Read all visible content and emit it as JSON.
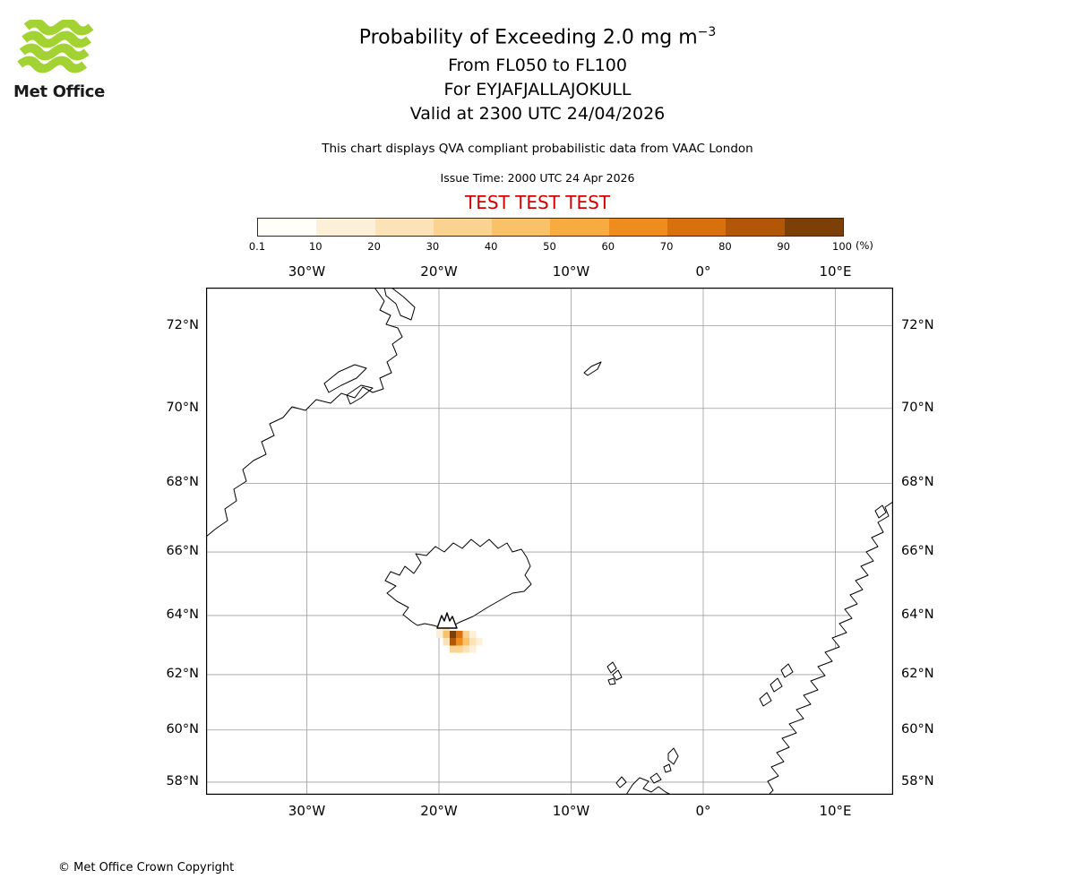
{
  "logo": {
    "brand": "Met Office",
    "color": "#a3d233"
  },
  "header": {
    "title": "Probability of Exceeding 2.0 mg m",
    "title_sup": "−3",
    "subtitle1": "From FL050 to FL100",
    "subtitle2": "For EYJAFJALLAJOKULL",
    "subtitle3": "Valid at 2300 UTC 24/04/2026",
    "description": "This chart displays QVA compliant probabilistic data from VAAC London",
    "issue_time": "Issue Time: 2000 UTC 24 Apr 2026",
    "test_banner": "TEST TEST TEST"
  },
  "legend": {
    "ticks": [
      "0.1",
      "10",
      "20",
      "30",
      "40",
      "50",
      "60",
      "70",
      "80",
      "90",
      "100"
    ],
    "unit": "(%)",
    "colors": [
      "#fffef9",
      "#fdf0d8",
      "#fce3b7",
      "#fbd390",
      "#f9c168",
      "#f7ab41",
      "#ee8d1e",
      "#d7700d",
      "#b25708",
      "#7c3f08"
    ]
  },
  "map": {
    "lon_labels": [
      "30°W",
      "20°W",
      "10°W",
      "0°",
      "10°E"
    ],
    "lat_labels": [
      "72°N",
      "70°N",
      "68°N",
      "66°N",
      "64°N",
      "62°N",
      "60°N",
      "58°N"
    ]
  },
  "footer": {
    "copyright": "© Met Office Crown Copyright"
  },
  "chart_data": {
    "type": "heatmap",
    "title": "Probability of Exceeding 2.0 mg m⁻³",
    "layer": "FL050 to FL100",
    "volcano": {
      "name": "EYJAFJALLAJOKULL",
      "lon": -19.6,
      "lat": 63.63
    },
    "valid_time": "2300 UTC 24/04/2026",
    "issue_time": "2000 UTC 24 Apr 2026",
    "source": "VAAC London",
    "units": "%",
    "projection": "mercator",
    "lon_range": [
      -37.6,
      14.4
    ],
    "lat_range": [
      57.5,
      73.0
    ],
    "lon_ticks_deg": [
      -30,
      -20,
      -10,
      0,
      10
    ],
    "lat_ticks_deg": [
      72,
      70,
      68,
      66,
      64,
      62,
      60,
      58
    ],
    "probability_bins_pct": [
      0.1,
      10,
      20,
      30,
      40,
      50,
      60,
      70,
      80,
      90,
      100
    ],
    "cells": [
      {
        "lon": -20.45,
        "lat": 63.625,
        "p": 5
      },
      {
        "lon": -19.95,
        "lat": 63.625,
        "p": 15
      },
      {
        "lon": -19.45,
        "lat": 63.625,
        "p": 25
      },
      {
        "lon": -19.95,
        "lat": 63.375,
        "p": 15
      },
      {
        "lon": -19.45,
        "lat": 63.375,
        "p": 45
      },
      {
        "lon": -18.95,
        "lat": 63.375,
        "p": 95
      },
      {
        "lon": -18.45,
        "lat": 63.375,
        "p": 75
      },
      {
        "lon": -17.95,
        "lat": 63.375,
        "p": 35
      },
      {
        "lon": -17.45,
        "lat": 63.375,
        "p": 15
      },
      {
        "lon": -19.45,
        "lat": 63.125,
        "p": 25
      },
      {
        "lon": -18.95,
        "lat": 63.125,
        "p": 85
      },
      {
        "lon": -18.45,
        "lat": 63.125,
        "p": 65
      },
      {
        "lon": -17.95,
        "lat": 63.125,
        "p": 45
      },
      {
        "lon": -17.45,
        "lat": 63.125,
        "p": 25
      },
      {
        "lon": -16.95,
        "lat": 63.125,
        "p": 10
      },
      {
        "lon": -18.95,
        "lat": 62.875,
        "p": 30
      },
      {
        "lon": -18.45,
        "lat": 62.875,
        "p": 30
      },
      {
        "lon": -17.95,
        "lat": 62.875,
        "p": 20
      },
      {
        "lon": -17.45,
        "lat": 62.875,
        "p": 12
      },
      {
        "lon": -18.45,
        "lat": 62.625,
        "p": 8
      },
      {
        "lon": -17.95,
        "lat": 62.625,
        "p": 8
      }
    ]
  }
}
